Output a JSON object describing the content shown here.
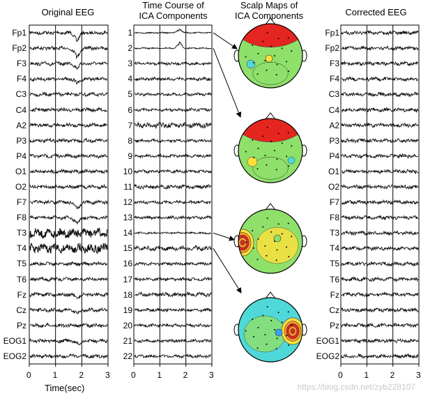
{
  "titles": {
    "original": "Original EEG",
    "timecourse_line1": "Time Course of",
    "timecourse_line2": "ICA Components",
    "scalp_line1": "Scalp Maps of",
    "scalp_line2": "ICA Components",
    "corrected": "Corrected EEG"
  },
  "channels": [
    "Fp1",
    "Fp2",
    "F3",
    "F4",
    "C3",
    "C4",
    "A2",
    "P3",
    "P4",
    "O1",
    "O2",
    "F7",
    "F8",
    "T3",
    "T4",
    "T5",
    "T6",
    "Fz",
    "Cz",
    "Pz",
    "EOG1",
    "EOG2"
  ],
  "components": [
    "1",
    "2",
    "3",
    "4",
    "5",
    "6",
    "7",
    "8",
    "9",
    "10",
    "11",
    "12",
    "13",
    "14",
    "15",
    "16",
    "17",
    "18",
    "19",
    "20",
    "21",
    "22"
  ],
  "x_ticks": [
    "0",
    "1",
    "2",
    "3"
  ],
  "x_axis_label": "Time(sec)",
  "watermark": "https://blog.csdn.net/zyb228107",
  "colors": {
    "trace": "#111111",
    "frame": "#000000",
    "scalp_blue": "#3aa0ff",
    "scalp_cyan": "#4fd8d8",
    "scalp_green": "#8fe06a",
    "scalp_yellow": "#ffe03a",
    "scalp_orange": "#ff9a2a",
    "scalp_red": "#e52520"
  },
  "scalp_maps": [
    {
      "name": "component-1",
      "pattern": "frontal-red"
    },
    {
      "name": "component-2",
      "pattern": "frontal-orange"
    },
    {
      "name": "component-14",
      "pattern": "left-temporal-red"
    },
    {
      "name": "component-15",
      "pattern": "right-temporal-red"
    }
  ]
}
